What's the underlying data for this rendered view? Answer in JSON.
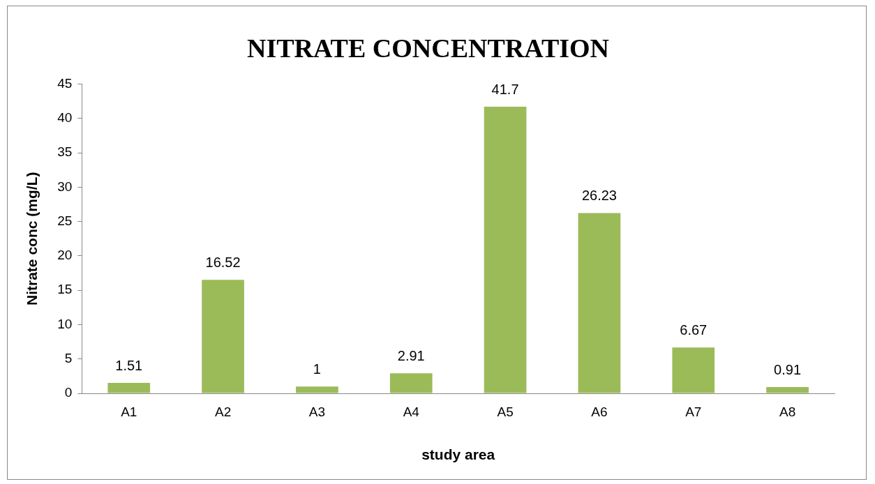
{
  "chart_data": {
    "type": "bar",
    "title": "NITRATE CONCENTRATION",
    "xlabel": "study area",
    "ylabel": "Nitrate conc (mg/L)",
    "categories": [
      "A1",
      "A2",
      "A3",
      "A4",
      "A5",
      "A6",
      "A7",
      "A8"
    ],
    "values": [
      1.51,
      16.52,
      1,
      2.91,
      41.7,
      26.23,
      6.67,
      0.91
    ],
    "color": "#9bbb59",
    "ylim": [
      0,
      45
    ],
    "yticks": [
      0,
      5,
      10,
      15,
      20,
      25,
      30,
      35,
      40,
      45
    ],
    "grid": false,
    "legend": false,
    "data_labels": true
  }
}
